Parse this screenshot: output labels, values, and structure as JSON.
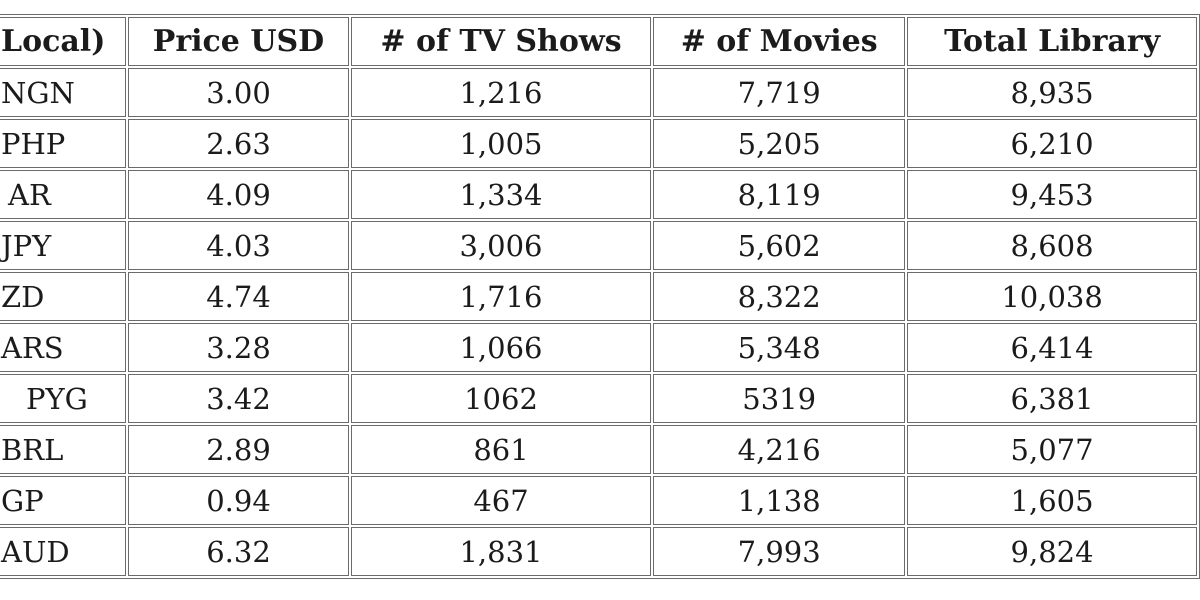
{
  "accent_colors": {
    "border": "#6b6b6b",
    "text": "#1b1b1b",
    "background": "#ffffff"
  },
  "chart_data": {
    "type": "table",
    "note_visible_truncation": "table is clipped at left and right viewport edges",
    "columns": [
      "Local)",
      "Price USD",
      "# of TV Shows",
      "# of Movies",
      "Total Library"
    ],
    "column_keys": [
      "local",
      "price-usd",
      "tv-shows",
      "movies",
      "total-library"
    ],
    "rows": [
      [
        "NGN",
        "3.00",
        "1,216",
        "7,719",
        "8,935"
      ],
      [
        "PHP",
        "2.63",
        "1,005",
        "5,205",
        "6,210"
      ],
      [
        "AR",
        "4.09",
        "1,334",
        "8,119",
        "9,453"
      ],
      [
        "JPY",
        "4.03",
        "3,006",
        "5,602",
        "8,608"
      ],
      [
        "ZD",
        "4.74",
        "1,716",
        "8,322",
        "10,038"
      ],
      [
        "ARS",
        "3.28",
        "1,066",
        "5,348",
        "6,414"
      ],
      [
        "PYG",
        "3.42",
        "1062",
        "5319",
        "6,381"
      ],
      [
        "BRL",
        "2.89",
        "861",
        "4,216",
        "5,077"
      ],
      [
        "GP",
        "0.94",
        "467",
        "1,138",
        "1,605"
      ],
      [
        "AUD",
        "6.32",
        "1,831",
        "7,993",
        "9,824"
      ]
    ]
  }
}
